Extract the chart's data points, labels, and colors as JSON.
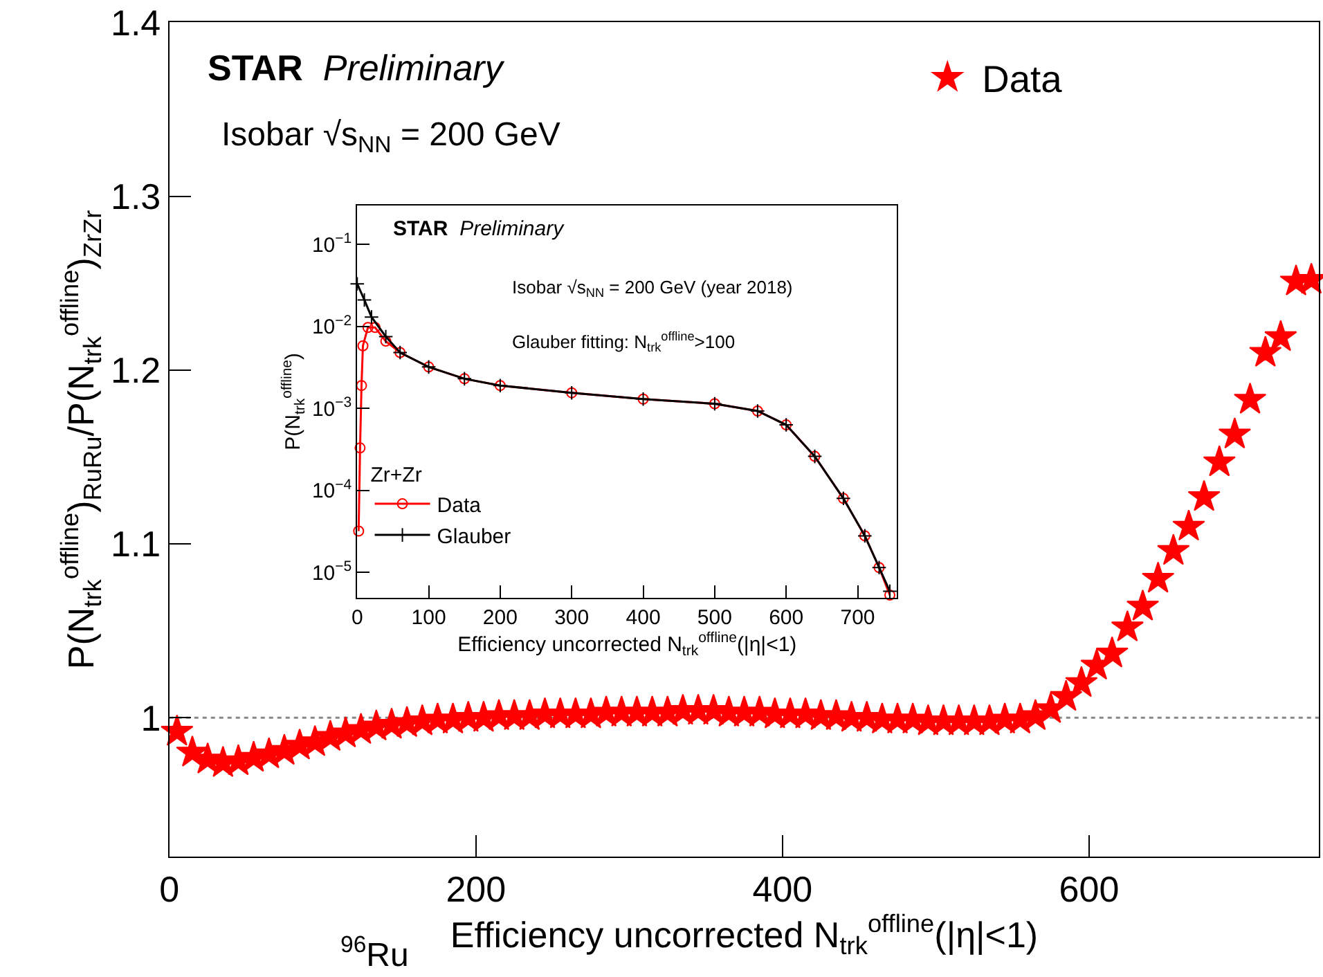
{
  "chart_data": [
    {
      "type": "scatter",
      "xlabel": "Efficiency uncorrected N$_{trk}$$^{offline}$(|η|<1)",
      "ylabel": "P(N$_{trk}$$^{offline}$)$_{RuRu}$/P(N$_{trk}$$^{offline}$)$_{ZrZr}$",
      "annotations": [
        "STAR Preliminary",
        "Isobar √s$_{NN}$ = 200 GeV",
        "$^{96}$Ru"
      ],
      "x": [
        5,
        15,
        25,
        35,
        45,
        55,
        65,
        75,
        85,
        95,
        105,
        115,
        125,
        135,
        145,
        155,
        165,
        175,
        185,
        195,
        205,
        215,
        225,
        235,
        245,
        255,
        265,
        275,
        285,
        295,
        305,
        315,
        325,
        335,
        345,
        355,
        365,
        375,
        385,
        395,
        405,
        415,
        425,
        435,
        445,
        455,
        465,
        475,
        485,
        495,
        505,
        515,
        525,
        535,
        545,
        555,
        565,
        575,
        585,
        595,
        605,
        615,
        625,
        635,
        645,
        655,
        665,
        675,
        685,
        695,
        705,
        715,
        725,
        735,
        745
      ],
      "series": [
        {
          "name": "Data",
          "color": "#ff0000",
          "values": [
            0.992,
            0.98,
            0.976,
            0.974,
            0.975,
            0.977,
            0.979,
            0.981,
            0.984,
            0.986,
            0.989,
            0.991,
            0.993,
            0.995,
            0.996,
            0.997,
            0.998,
            0.999,
            0.999,
            1.0,
            1.0,
            1.001,
            1.001,
            1.001,
            1.002,
            1.002,
            1.002,
            1.002,
            1.003,
            1.003,
            1.003,
            1.003,
            1.003,
            1.004,
            1.004,
            1.004,
            1.003,
            1.003,
            1.003,
            1.002,
            1.002,
            1.002,
            1.001,
            1.001,
            1.0,
            1.0,
            0.999,
            0.999,
            0.999,
            0.998,
            0.998,
            0.998,
            0.998,
            0.998,
            0.999,
            0.999,
            1.001,
            1.005,
            1.012,
            1.02,
            1.03,
            1.037,
            1.052,
            1.064,
            1.08,
            1.096,
            1.11,
            1.127,
            1.147,
            1.163,
            1.183,
            1.21,
            1.219,
            1.251,
            1.252
          ]
        }
      ],
      "marker": "star",
      "xlim": [
        0,
        750
      ],
      "ylim": [
        0.92,
        1.4
      ],
      "xticks": [
        0,
        200,
        400,
        600
      ],
      "yticks": [
        1,
        1.1,
        1.2,
        1.3,
        1.4
      ],
      "ref_lines": [
        {
          "axis": "y",
          "value": 1,
          "color": "#888888",
          "line_style": "dotted"
        }
      ],
      "grid": false,
      "legend": "top right"
    },
    {
      "type": "line",
      "xlabel": "Efficiency uncorrected N$_{trk}$$^{offline}$(|η|<1)",
      "ylabel": "P(N$_{trk}$$^{offline}$)",
      "legend_title": "Zr+Zr",
      "annotations": [
        "STAR Preliminary",
        "Isobar √s$_{NN}$ = 200 GeV (year 2018)",
        "Glauber fitting: N$_{trk}$$^{offline}$>100"
      ],
      "series": [
        {
          "name": "Data",
          "color": "#ff0000",
          "marker": "circle",
          "x": [
            2,
            4,
            6,
            8,
            15,
            25,
            40,
            60,
            100,
            150,
            200,
            300,
            400,
            500,
            560,
            600,
            640,
            680,
            710,
            730,
            745
          ],
          "values": [
            3.2e-05,
            0.00033,
            0.0019,
            0.0058,
            0.0097,
            0.0097,
            0.0066,
            0.0048,
            0.0032,
            0.0023,
            0.0019,
            0.00155,
            0.0013,
            0.00114,
            0.00093,
            0.00063,
            0.00026,
            8e-05,
            2.8e-05,
            1.15e-05,
            5.3e-06
          ]
        },
        {
          "name": "Glauber",
          "color": "#000000",
          "marker": "cross",
          "x": [
            0,
            10,
            20,
            40,
            60,
            100,
            150,
            200,
            300,
            400,
            500,
            560,
            600,
            640,
            680,
            710,
            730,
            745
          ],
          "values": [
            0.033,
            0.021,
            0.013,
            0.0075,
            0.0048,
            0.0032,
            0.0023,
            0.0019,
            0.00155,
            0.0013,
            0.00114,
            0.00093,
            0.00063,
            0.00026,
            8e-05,
            2.8e-05,
            1.15e-05,
            5.9e-06
          ]
        }
      ],
      "log": "y",
      "xlim": [
        0,
        755
      ],
      "ylim": [
        4.9e-06,
        0.3
      ],
      "xticks": [
        0,
        100,
        200,
        300,
        400,
        500,
        600,
        700
      ],
      "yticks": [
        {
          "value": 0.1,
          "label": "10$^{−1}$"
        },
        {
          "value": 0.01,
          "label": "10$^{−2}$"
        },
        {
          "value": 0.001,
          "label": "10$^{−3}$"
        },
        {
          "value": 0.0001,
          "label": "10$^{−4}$"
        },
        {
          "value": 1e-05,
          "label": "10$^{−5}$"
        }
      ],
      "grid": false,
      "legend": "bottom left"
    }
  ]
}
